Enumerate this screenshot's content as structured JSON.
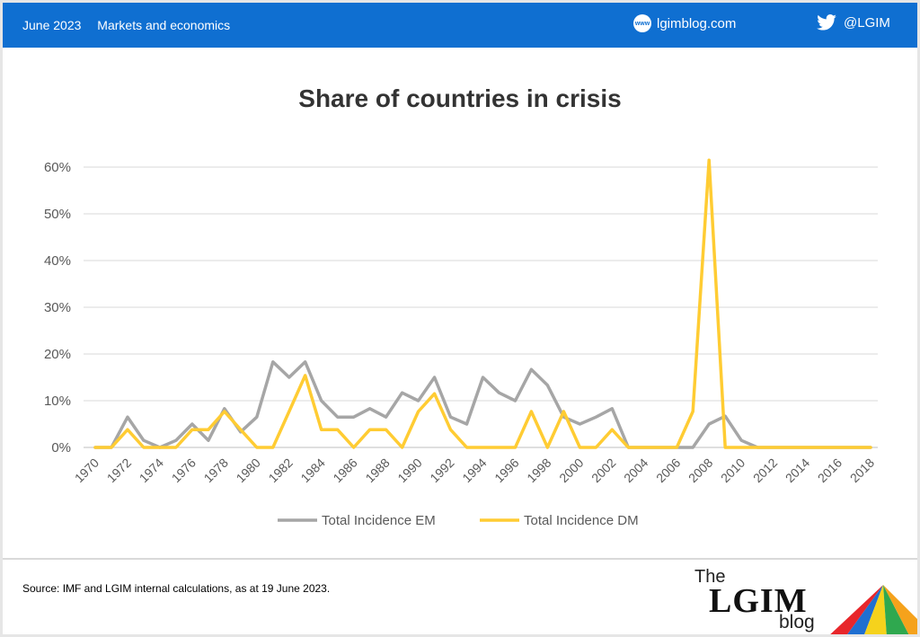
{
  "header": {
    "date": "June 2023",
    "category": "Markets and economics",
    "site_badge": "www",
    "site": "lgimblog.com",
    "twitter": "@LGIM"
  },
  "footer": {
    "source": "Source: IMF and LGIM internal calculations, as at 19 June 2023."
  },
  "logo": {
    "the": "The",
    "lgim": "LGIM",
    "blog": "blog"
  },
  "icons": {
    "site": "globe-icon",
    "twitter": "twitter-bird-icon"
  },
  "colors": {
    "header_bg": "#0f6fd1",
    "em": "#a6a6a6",
    "dm": "#ffcc33"
  },
  "chart_data": {
    "type": "line",
    "title": "Share of countries in crisis",
    "x": [
      1970,
      1971,
      1972,
      1973,
      1974,
      1975,
      1976,
      1977,
      1978,
      1979,
      1980,
      1981,
      1982,
      1983,
      1984,
      1985,
      1986,
      1987,
      1988,
      1989,
      1990,
      1991,
      1992,
      1993,
      1994,
      1995,
      1996,
      1997,
      1998,
      1999,
      2000,
      2001,
      2002,
      2003,
      2004,
      2005,
      2006,
      2007,
      2008,
      2009,
      2010,
      2011,
      2012,
      2013,
      2014,
      2015,
      2016,
      2017,
      2018
    ],
    "x_tick_labels": [
      "1970",
      "1972",
      "1974",
      "1976",
      "1978",
      "1980",
      "1982",
      "1984",
      "1986",
      "1988",
      "1990",
      "1992",
      "1994",
      "1996",
      "1998",
      "2000",
      "2002",
      "2004",
      "2006",
      "2008",
      "2010",
      "2012",
      "2014",
      "2016",
      "2018"
    ],
    "y_tick_labels": [
      "0%",
      "10%",
      "20%",
      "30%",
      "40%",
      "50%",
      "60%"
    ],
    "ylim": [
      0,
      60
    ],
    "grid": true,
    "legend_position": "bottom",
    "series": [
      {
        "name": "Total Incidence EM",
        "values": [
          0,
          0,
          6.5,
          1.5,
          0,
          1.5,
          5,
          1.5,
          8.3,
          3.3,
          6.5,
          18.3,
          15,
          18.3,
          10,
          6.5,
          6.5,
          8.3,
          6.5,
          11.7,
          10,
          15,
          6.5,
          5,
          15,
          11.7,
          10,
          16.7,
          13.3,
          6.5,
          5,
          6.5,
          8.3,
          0,
          0,
          0,
          0,
          0,
          5,
          6.7,
          1.5,
          0,
          0,
          0,
          0,
          0,
          0,
          0,
          0
        ]
      },
      {
        "name": "Total Incidence DM",
        "values": [
          0,
          0,
          3.8,
          0,
          0,
          0,
          3.8,
          3.8,
          7.7,
          3.8,
          0,
          0,
          7.7,
          15.4,
          3.8,
          3.8,
          0,
          3.8,
          3.8,
          0,
          7.7,
          11.5,
          3.8,
          0,
          0,
          0,
          0,
          7.7,
          0,
          7.7,
          0,
          0,
          3.8,
          0,
          0,
          0,
          0,
          7.7,
          61.5,
          0,
          0,
          0,
          0,
          0,
          0,
          0,
          0,
          0,
          0
        ]
      }
    ]
  }
}
